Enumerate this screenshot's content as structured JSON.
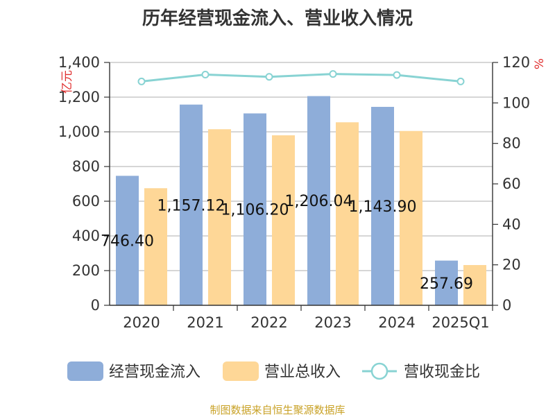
{
  "title": "历年经营现金流入、营业收入情况",
  "source": "制图数据来自恒生聚源数据库",
  "colors": {
    "cash_inflow": "#8eadd9",
    "revenue": "#fed797",
    "ratio": "#88d3d3",
    "grid": "#bdbdbd",
    "axis": "#333333"
  },
  "chart_data": {
    "type": "bar",
    "title": "历年经营现金流入、营业收入情况",
    "categories": [
      "2020",
      "2021",
      "2022",
      "2023",
      "2024",
      "2025Q1"
    ],
    "y_left": {
      "label": "亿元",
      "min": 0,
      "max": 1400,
      "ticks": [
        "0",
        "200",
        "400",
        "600",
        "800",
        "1,000",
        "1,200",
        "1,400"
      ]
    },
    "y_right": {
      "label": "%",
      "min": 0,
      "max": 120,
      "ticks": [
        "0",
        "20",
        "40",
        "60",
        "80",
        "100",
        "120"
      ]
    },
    "grid": true,
    "legend_position": "bottom",
    "series": [
      {
        "name": "经营现金流入",
        "type": "bar",
        "axis": "left",
        "values": [
          746.4,
          1157.12,
          1106.2,
          1206.04,
          1143.9,
          257.69
        ],
        "labels": [
          "746.40",
          "1,157.12",
          "1,106.20",
          "1,206.04",
          "1,143.90",
          "257.69"
        ]
      },
      {
        "name": "营业总收入",
        "type": "bar",
        "axis": "left",
        "values": [
          675,
          1015,
          980,
          1055,
          1005,
          232
        ]
      },
      {
        "name": "营收现金比",
        "type": "line",
        "axis": "right",
        "values": [
          110.6,
          114.0,
          112.9,
          114.3,
          113.8,
          110.6
        ]
      }
    ]
  }
}
